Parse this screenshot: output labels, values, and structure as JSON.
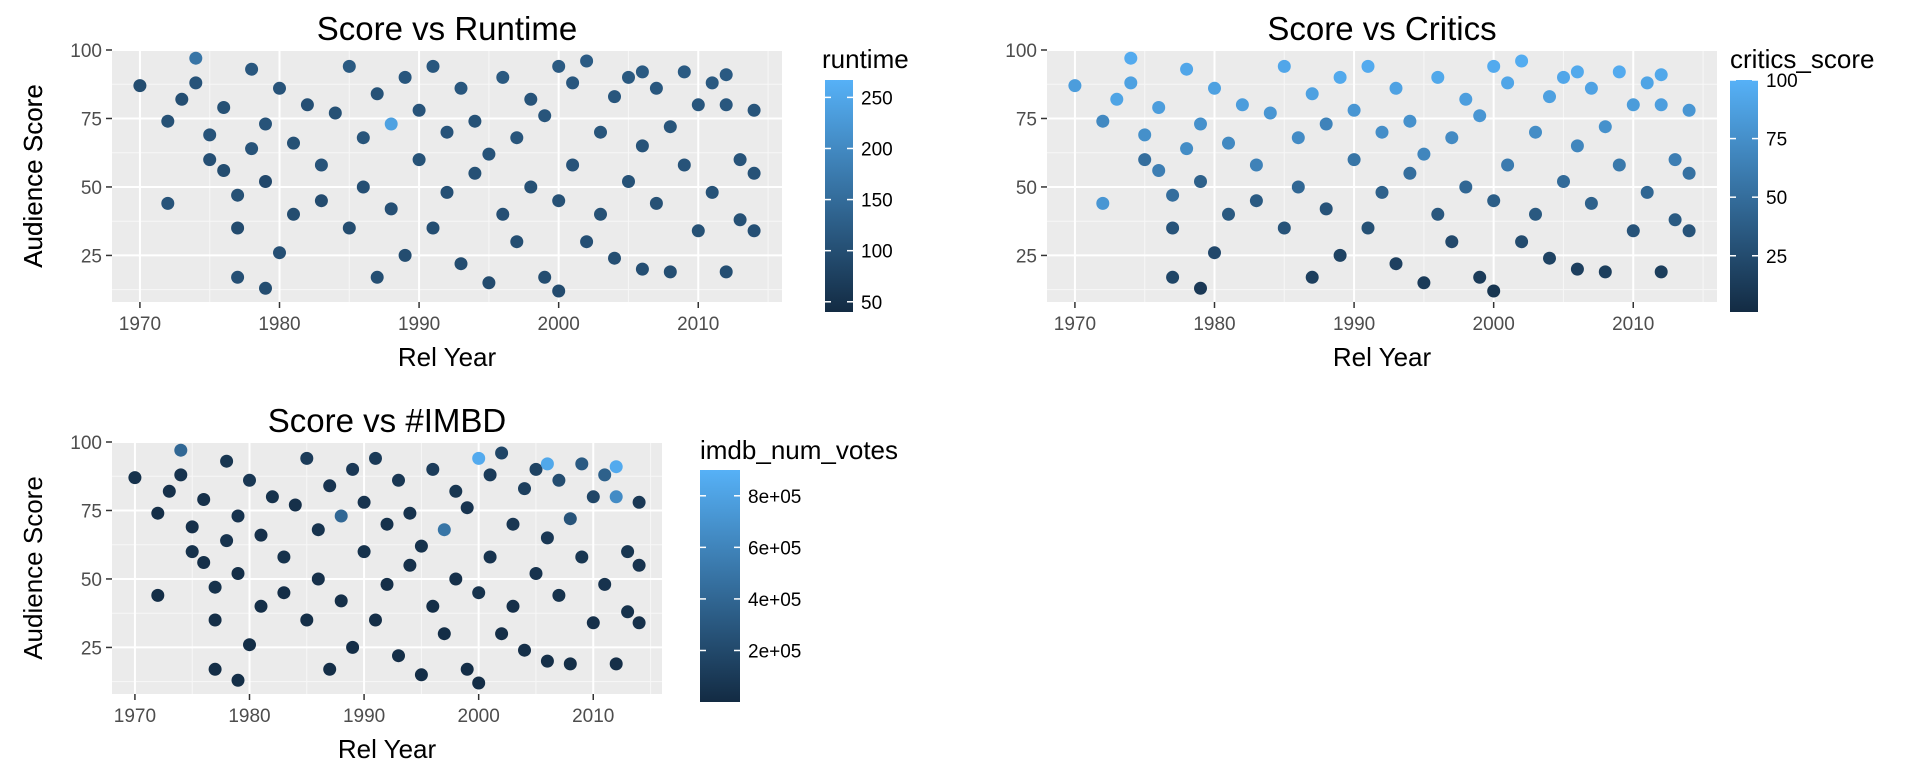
{
  "chart_data": [
    {
      "type": "scatter",
      "title": "Score vs Runtime",
      "xlabel": "Rel Year",
      "ylabel": "Audience Score",
      "xlim": [
        1968,
        2016
      ],
      "ylim": [
        8,
        100
      ],
      "xticks": [
        1970,
        1980,
        1990,
        2000,
        2010
      ],
      "yticks": [
        25,
        50,
        75,
        100
      ],
      "grid": true,
      "legend": {
        "title": "runtime",
        "placement": "right",
        "type": "colorbar",
        "range": [
          40,
          267
        ],
        "ticks": [
          50,
          100,
          150,
          200,
          250
        ],
        "low_color": "#132B43",
        "high_color": "#56B1F7"
      }
    },
    {
      "type": "scatter",
      "title": "Score vs Critics",
      "xlabel": "Rel Year",
      "ylabel": "Audience Score",
      "xlim": [
        1968,
        2016
      ],
      "ylim": [
        8,
        100
      ],
      "xticks": [
        1970,
        1980,
        1990,
        2000,
        2010
      ],
      "yticks": [
        25,
        50,
        75,
        100
      ],
      "grid": true,
      "legend": {
        "title": "critics_score",
        "placement": "right",
        "type": "colorbar",
        "range": [
          1,
          100
        ],
        "ticks": [
          25,
          50,
          75,
          100
        ],
        "low_color": "#132B43",
        "high_color": "#56B1F7"
      }
    },
    {
      "type": "scatter",
      "title": "Score vs #IMBD",
      "xlabel": "Rel Year",
      "ylabel": "Audience Score",
      "xlim": [
        1968,
        2016
      ],
      "ylim": [
        8,
        100
      ],
      "xticks": [
        1970,
        1980,
        1990,
        2000,
        2010
      ],
      "yticks": [
        25,
        50,
        75,
        100
      ],
      "grid": true,
      "legend": {
        "title": "imdb_num_votes",
        "placement": "right",
        "type": "colorbar",
        "range": [
          200,
          900000
        ],
        "ticks": [
          200000,
          400000,
          600000,
          800000
        ],
        "tick_labels": [
          "2e+05",
          "4e+05",
          "6e+05",
          "8e+05"
        ],
        "low_color": "#132B43",
        "high_color": "#56B1F7"
      }
    }
  ],
  "points": [
    [
      1970,
      87,
      0.25,
      0.85,
      0.05
    ],
    [
      1972,
      44,
      0.3,
      0.8,
      0.02
    ],
    [
      1972,
      74,
      0.28,
      0.7,
      0.03
    ],
    [
      1973,
      82,
      0.26,
      0.9,
      0.04
    ],
    [
      1974,
      97,
      0.55,
      0.95,
      0.45
    ],
    [
      1974,
      88,
      0.3,
      0.88,
      0.06
    ],
    [
      1975,
      60,
      0.27,
      0.5,
      0.05
    ],
    [
      1975,
      69,
      0.3,
      0.75,
      0.04
    ],
    [
      1976,
      56,
      0.25,
      0.62,
      0.03
    ],
    [
      1976,
      79,
      0.28,
      0.85,
      0.04
    ],
    [
      1977,
      17,
      0.27,
      0.2,
      0.02
    ],
    [
      1977,
      35,
      0.24,
      0.3,
      0.03
    ],
    [
      1977,
      47,
      0.28,
      0.5,
      0.05
    ],
    [
      1978,
      64,
      0.3,
      0.73,
      0.06
    ],
    [
      1978,
      93,
      0.33,
      0.92,
      0.08
    ],
    [
      1979,
      13,
      0.25,
      0.1,
      0.02
    ],
    [
      1979,
      52,
      0.22,
      0.4,
      0.03
    ],
    [
      1979,
      73,
      0.3,
      0.76,
      0.06
    ],
    [
      1980,
      26,
      0.27,
      0.22,
      0.02
    ],
    [
      1980,
      86,
      0.3,
      0.88,
      0.09
    ],
    [
      1981,
      40,
      0.25,
      0.34,
      0.02
    ],
    [
      1981,
      66,
      0.28,
      0.7,
      0.04
    ],
    [
      1982,
      80,
      0.27,
      0.85,
      0.05
    ],
    [
      1983,
      45,
      0.24,
      0.35,
      0.02
    ],
    [
      1983,
      58,
      0.3,
      0.65,
      0.05
    ],
    [
      1984,
      77,
      0.28,
      0.8,
      0.04
    ],
    [
      1985,
      94,
      0.35,
      0.92,
      0.12
    ],
    [
      1985,
      35,
      0.25,
      0.3,
      0.03
    ],
    [
      1986,
      50,
      0.27,
      0.45,
      0.04
    ],
    [
      1986,
      68,
      0.31,
      0.72,
      0.06
    ],
    [
      1987,
      17,
      0.26,
      0.15,
      0.02
    ],
    [
      1987,
      84,
      0.29,
      0.88,
      0.07
    ],
    [
      1988,
      73,
      0.88,
      0.66,
      0.45
    ],
    [
      1988,
      42,
      0.27,
      0.3,
      0.03
    ],
    [
      1989,
      25,
      0.25,
      0.18,
      0.02
    ],
    [
      1989,
      90,
      0.32,
      0.94,
      0.1
    ],
    [
      1990,
      60,
      0.29,
      0.55,
      0.05
    ],
    [
      1990,
      78,
      0.3,
      0.8,
      0.06
    ],
    [
      1991,
      35,
      0.26,
      0.28,
      0.02
    ],
    [
      1991,
      94,
      0.33,
      0.95,
      0.11
    ],
    [
      1992,
      48,
      0.27,
      0.4,
      0.03
    ],
    [
      1992,
      70,
      0.3,
      0.74,
      0.05
    ],
    [
      1993,
      22,
      0.25,
      0.16,
      0.02
    ],
    [
      1993,
      86,
      0.32,
      0.89,
      0.09
    ],
    [
      1994,
      55,
      0.28,
      0.5,
      0.04
    ],
    [
      1994,
      74,
      0.29,
      0.76,
      0.06
    ],
    [
      1995,
      15,
      0.24,
      0.12,
      0.02
    ],
    [
      1995,
      62,
      0.3,
      0.68,
      0.05
    ],
    [
      1996,
      40,
      0.27,
      0.33,
      0.03
    ],
    [
      1996,
      90,
      0.34,
      0.93,
      0.13
    ],
    [
      1997,
      68,
      0.31,
      0.71,
      0.55
    ],
    [
      1997,
      30,
      0.26,
      0.22,
      0.02
    ],
    [
      1998,
      82,
      0.3,
      0.86,
      0.08
    ],
    [
      1998,
      50,
      0.28,
      0.45,
      0.04
    ],
    [
      1999,
      17,
      0.25,
      0.12,
      0.02
    ],
    [
      1999,
      76,
      0.31,
      0.8,
      0.07
    ],
    [
      2000,
      94,
      0.35,
      0.95,
      0.95
    ],
    [
      2000,
      12,
      0.24,
      0.08,
      0.02
    ],
    [
      2000,
      45,
      0.28,
      0.38,
      0.05
    ],
    [
      2001,
      58,
      0.3,
      0.6,
      0.06
    ],
    [
      2001,
      88,
      0.33,
      0.91,
      0.12
    ],
    [
      2002,
      30,
      0.27,
      0.24,
      0.03
    ],
    [
      2002,
      96,
      0.36,
      0.96,
      0.2
    ],
    [
      2003,
      70,
      0.31,
      0.73,
      0.09
    ],
    [
      2003,
      40,
      0.28,
      0.34,
      0.04
    ],
    [
      2004,
      24,
      0.26,
      0.18,
      0.03
    ],
    [
      2004,
      83,
      0.32,
      0.87,
      0.15
    ],
    [
      2005,
      52,
      0.29,
      0.48,
      0.06
    ],
    [
      2005,
      90,
      0.34,
      0.92,
      0.18
    ],
    [
      2006,
      20,
      0.26,
      0.15,
      0.03
    ],
    [
      2006,
      92,
      0.35,
      0.94,
      0.93
    ],
    [
      2006,
      65,
      0.3,
      0.68,
      0.1
    ],
    [
      2007,
      44,
      0.28,
      0.4,
      0.05
    ],
    [
      2007,
      86,
      0.33,
      0.89,
      0.25
    ],
    [
      2008,
      72,
      0.31,
      0.76,
      0.3
    ],
    [
      2008,
      19,
      0.26,
      0.14,
      0.03
    ],
    [
      2009,
      58,
      0.3,
      0.58,
      0.08
    ],
    [
      2009,
      92,
      0.35,
      0.95,
      0.35
    ],
    [
      2010,
      34,
      0.28,
      0.3,
      0.04
    ],
    [
      2010,
      80,
      0.32,
      0.84,
      0.2
    ],
    [
      2011,
      48,
      0.29,
      0.44,
      0.06
    ],
    [
      2011,
      88,
      0.34,
      0.9,
      0.4
    ],
    [
      2012,
      91,
      0.35,
      0.93,
      0.95
    ],
    [
      2012,
      80,
      0.33,
      0.86,
      0.72
    ],
    [
      2012,
      19,
      0.26,
      0.14,
      0.03
    ],
    [
      2013,
      60,
      0.3,
      0.62,
      0.08
    ],
    [
      2013,
      38,
      0.28,
      0.35,
      0.05
    ],
    [
      2014,
      78,
      0.31,
      0.8,
      0.1
    ],
    [
      2014,
      34,
      0.27,
      0.3,
      0.04
    ],
    [
      2014,
      55,
      0.29,
      0.52,
      0.06
    ]
  ]
}
